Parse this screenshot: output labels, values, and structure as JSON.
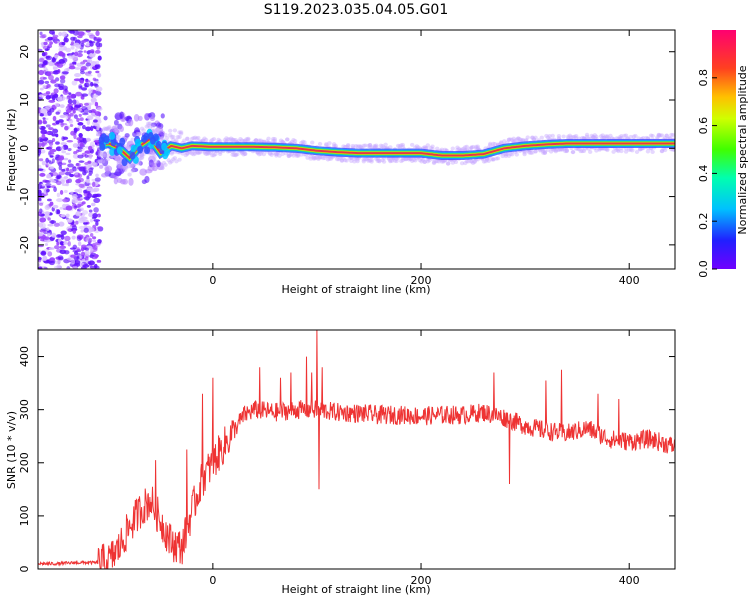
{
  "title": "S119.2023.035.04.05.G01",
  "colors": {
    "snr_line": "#ee3333",
    "ridge": "#e8344a",
    "text": "#000000",
    "axes": "#000000"
  },
  "chart_data": [
    {
      "type": "heatmap",
      "panel": "spectrogram",
      "xlabel": "Height of straight line (km)",
      "ylabel": "Frequency (Hz)",
      "xlim": [
        -168,
        444
      ],
      "ylim": [
        -25,
        24.5
      ],
      "xticks": [
        0,
        200,
        400
      ],
      "yticks": [
        -20,
        -10,
        0,
        10,
        20
      ],
      "colorbar": {
        "label": "Normalized spectral amplitude",
        "range": [
          0,
          1
        ],
        "ticks": [
          0.0,
          0.2,
          0.4,
          0.6,
          0.8
        ],
        "colormap": "rainbow (purple-blue-cyan-green-yellow-orange-red-magenta)"
      },
      "ridge": {
        "description": "Dominant frequency line (peak amplitude ~1)",
        "x": [
          -110,
          -100,
          -90,
          -80,
          -70,
          -60,
          -50,
          -40,
          -30,
          -20,
          0,
          20,
          40,
          60,
          80,
          100,
          120,
          140,
          160,
          180,
          200,
          220,
          240,
          260,
          280,
          300,
          320,
          340,
          360,
          380,
          400,
          420,
          444
        ],
        "y": [
          0.5,
          1.0,
          0.0,
          -2.0,
          0.5,
          2.0,
          -1.0,
          0.5,
          0.0,
          0.5,
          0.3,
          0.3,
          0.3,
          0.2,
          0.0,
          -0.5,
          -0.8,
          -1.0,
          -1.0,
          -1.0,
          -1.0,
          -1.5,
          -1.5,
          -1.2,
          0.0,
          0.5,
          0.8,
          1.0,
          1.0,
          1.0,
          1.0,
          1.0,
          1.0
        ]
      },
      "noise_region": {
        "description": "Scattered low-amplitude speckle across all frequencies",
        "x_range": [
          -168,
          -108
        ]
      }
    },
    {
      "type": "line",
      "panel": "snr",
      "xlabel": "Height of straight line (km)",
      "ylabel": "SNR (10 * v/v)",
      "xlim": [
        -168,
        444
      ],
      "ylim": [
        0,
        450
      ],
      "xticks": [
        0,
        200,
        400
      ],
      "yticks": [
        0,
        100,
        200,
        300,
        400
      ],
      "series": [
        {
          "x": [
            -168,
            -150,
            -130,
            -110,
            -100,
            -90,
            -80,
            -70,
            -60,
            -50,
            -40,
            -30,
            -20,
            -10,
            0,
            10,
            20,
            30,
            40,
            60,
            80,
            100,
            120,
            140,
            160,
            180,
            200,
            220,
            240,
            260,
            280,
            300,
            320,
            340,
            360,
            380,
            400,
            420,
            444
          ],
          "y": [
            10,
            10,
            12,
            12,
            15,
            40,
            80,
            110,
            130,
            90,
            50,
            40,
            110,
            170,
            200,
            230,
            260,
            290,
            300,
            295,
            300,
            300,
            295,
            293,
            290,
            290,
            288,
            290,
            290,
            295,
            285,
            270,
            260,
            255,
            265,
            245,
            240,
            245,
            230
          ]
        }
      ],
      "spikes": {
        "x": [
          -55,
          -25,
          -10,
          0,
          45,
          65,
          75,
          90,
          95,
          100,
          102,
          105,
          270,
          285,
          320,
          335,
          370,
          390
        ],
        "y": [
          205,
          225,
          330,
          360,
          380,
          360,
          370,
          400,
          370,
          450,
          150,
          380,
          370,
          160,
          355,
          375,
          330,
          320
        ]
      }
    }
  ]
}
